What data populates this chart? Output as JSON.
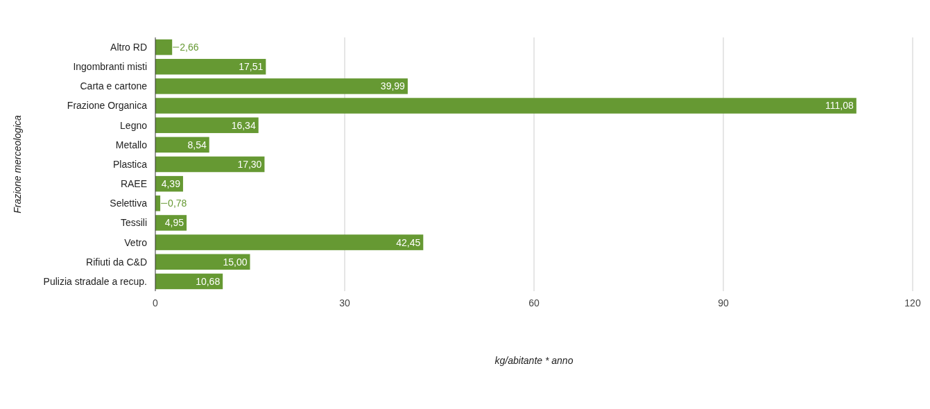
{
  "chart_data": {
    "type": "bar",
    "orientation": "horizontal",
    "xlabel": "kg/abitante * anno",
    "ylabel": "Frazione merceologica",
    "categories": [
      "Altro RD",
      "Ingombranti misti",
      "Carta e cartone",
      "Frazione Organica",
      "Legno",
      "Metallo",
      "Plastica",
      "RAEE",
      "Selettiva",
      "Tessili",
      "Vetro",
      "Rifiuti da C&D",
      "Pulizia stradale a recup."
    ],
    "values": [
      2.66,
      17.51,
      39.99,
      111.08,
      16.34,
      8.54,
      17.3,
      4.39,
      0.78,
      4.95,
      42.45,
      15.0,
      10.68
    ],
    "value_labels": [
      "2,66",
      "17,51",
      "39,99",
      "111,08",
      "16,34",
      "8,54",
      "17,30",
      "4,39",
      "0,78",
      "4,95",
      "42,45",
      "15,00",
      "10,68"
    ],
    "color": "#669933",
    "xlim": [
      0,
      120
    ],
    "xticks": [
      0,
      30,
      60,
      90,
      120
    ],
    "grid": "x"
  }
}
